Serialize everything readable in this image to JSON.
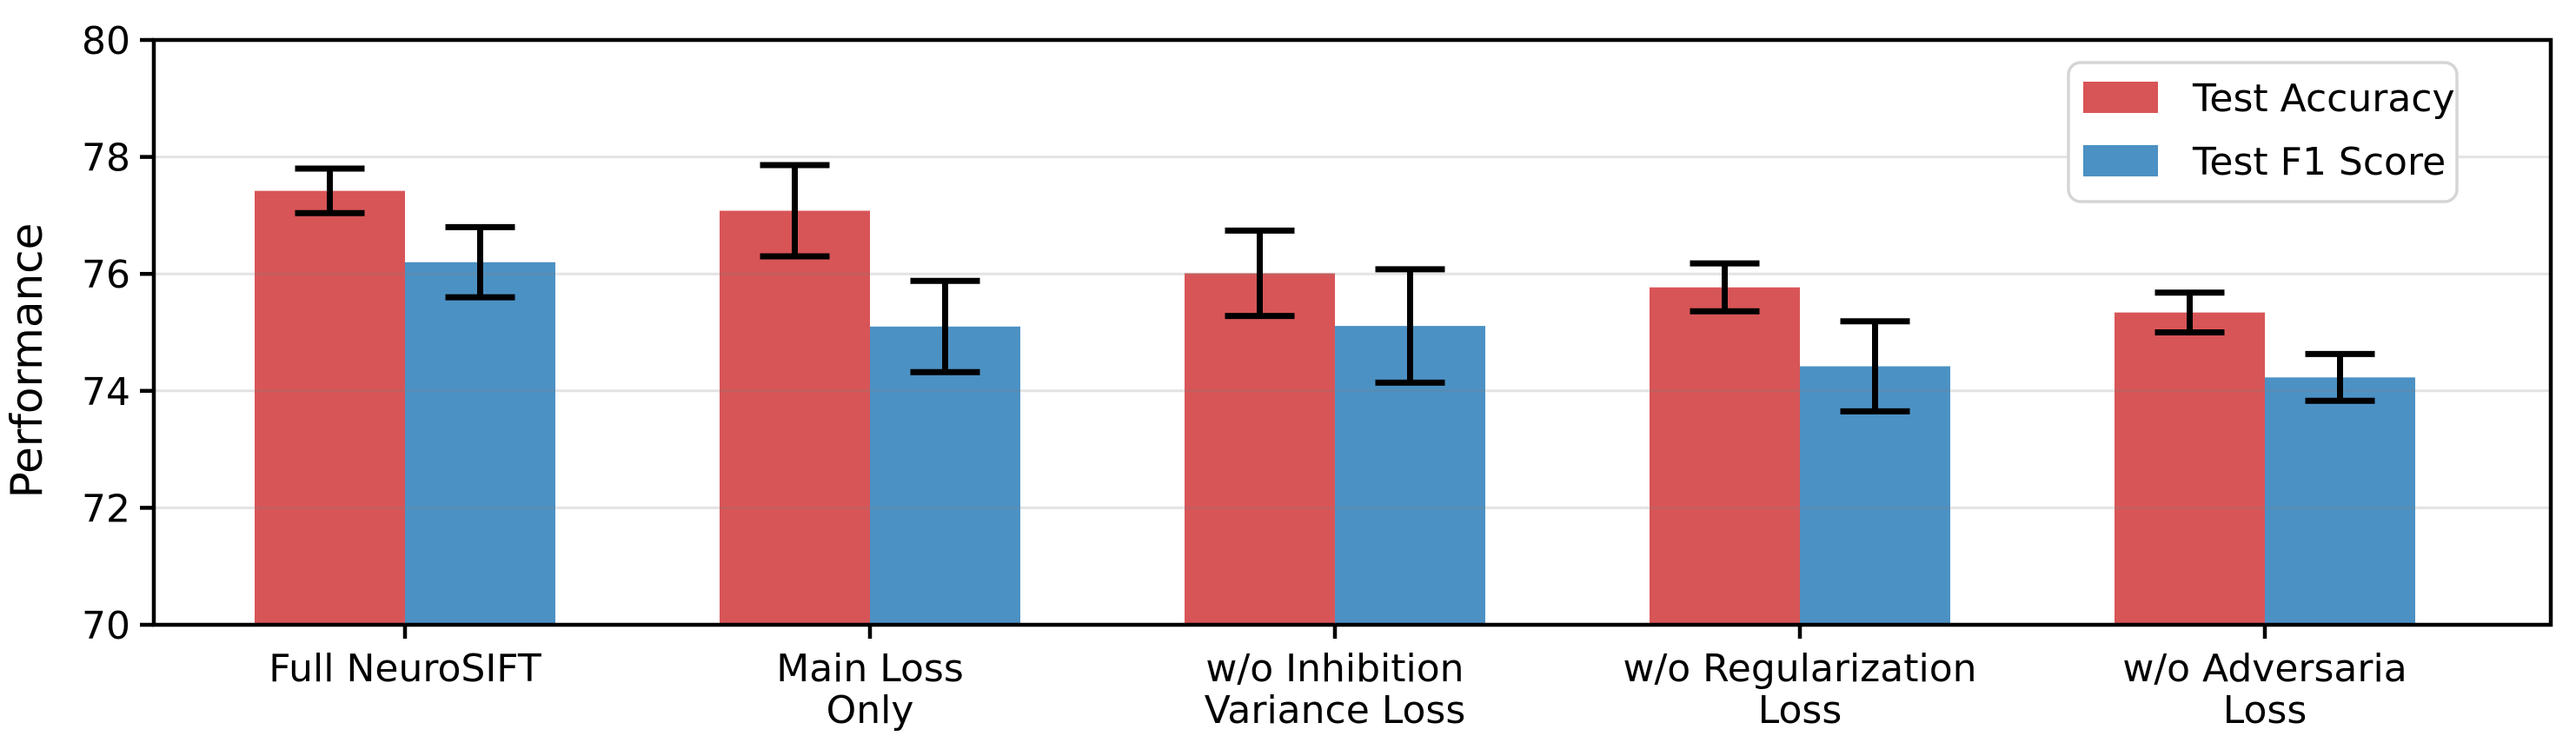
{
  "chart_data": {
    "type": "bar",
    "title": "",
    "xlabel": "",
    "ylabel": "Performance",
    "ylim": [
      70,
      80
    ],
    "yticks": [
      70,
      72,
      74,
      76,
      78,
      80
    ],
    "grid": "horizontal-light",
    "legend_position": "upper-right",
    "categories": [
      "Full NeuroSIFT",
      "Main Loss\nOnly",
      "w/o Inhibition\nVariance Loss",
      "w/o Regularization\nLoss",
      "w/o Adversaria\nLoss"
    ],
    "series": [
      {
        "name": "Test Accuracy",
        "color": "#d85557",
        "values": [
          77.42,
          77.08,
          76.01,
          75.77,
          75.34
        ],
        "errors": [
          0.38,
          0.78,
          0.73,
          0.41,
          0.34
        ]
      },
      {
        "name": "Test F1 Score",
        "color": "#4c91c4",
        "values": [
          76.2,
          75.1,
          75.11,
          74.42,
          74.23
        ],
        "errors": [
          0.6,
          0.78,
          0.97,
          0.77,
          0.4
        ]
      }
    ],
    "error_bar_color": "#000000",
    "colors": {
      "spine": "#000000",
      "gridline": "rgba(128,128,128,0.22)",
      "legend_border": "#d5d5d5",
      "legend_background": "#ffffff"
    }
  }
}
